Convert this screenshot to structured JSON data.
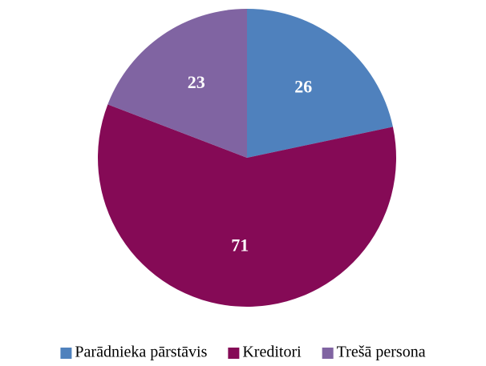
{
  "chart_data": {
    "type": "pie",
    "categories": [
      "Parādnieka pārstāvis",
      "Kreditori",
      "Trešā persona"
    ],
    "values": [
      26,
      71,
      23
    ],
    "colors": [
      "#4f81bd",
      "#850a56",
      "#8064a2"
    ],
    "legend": "bottom"
  }
}
